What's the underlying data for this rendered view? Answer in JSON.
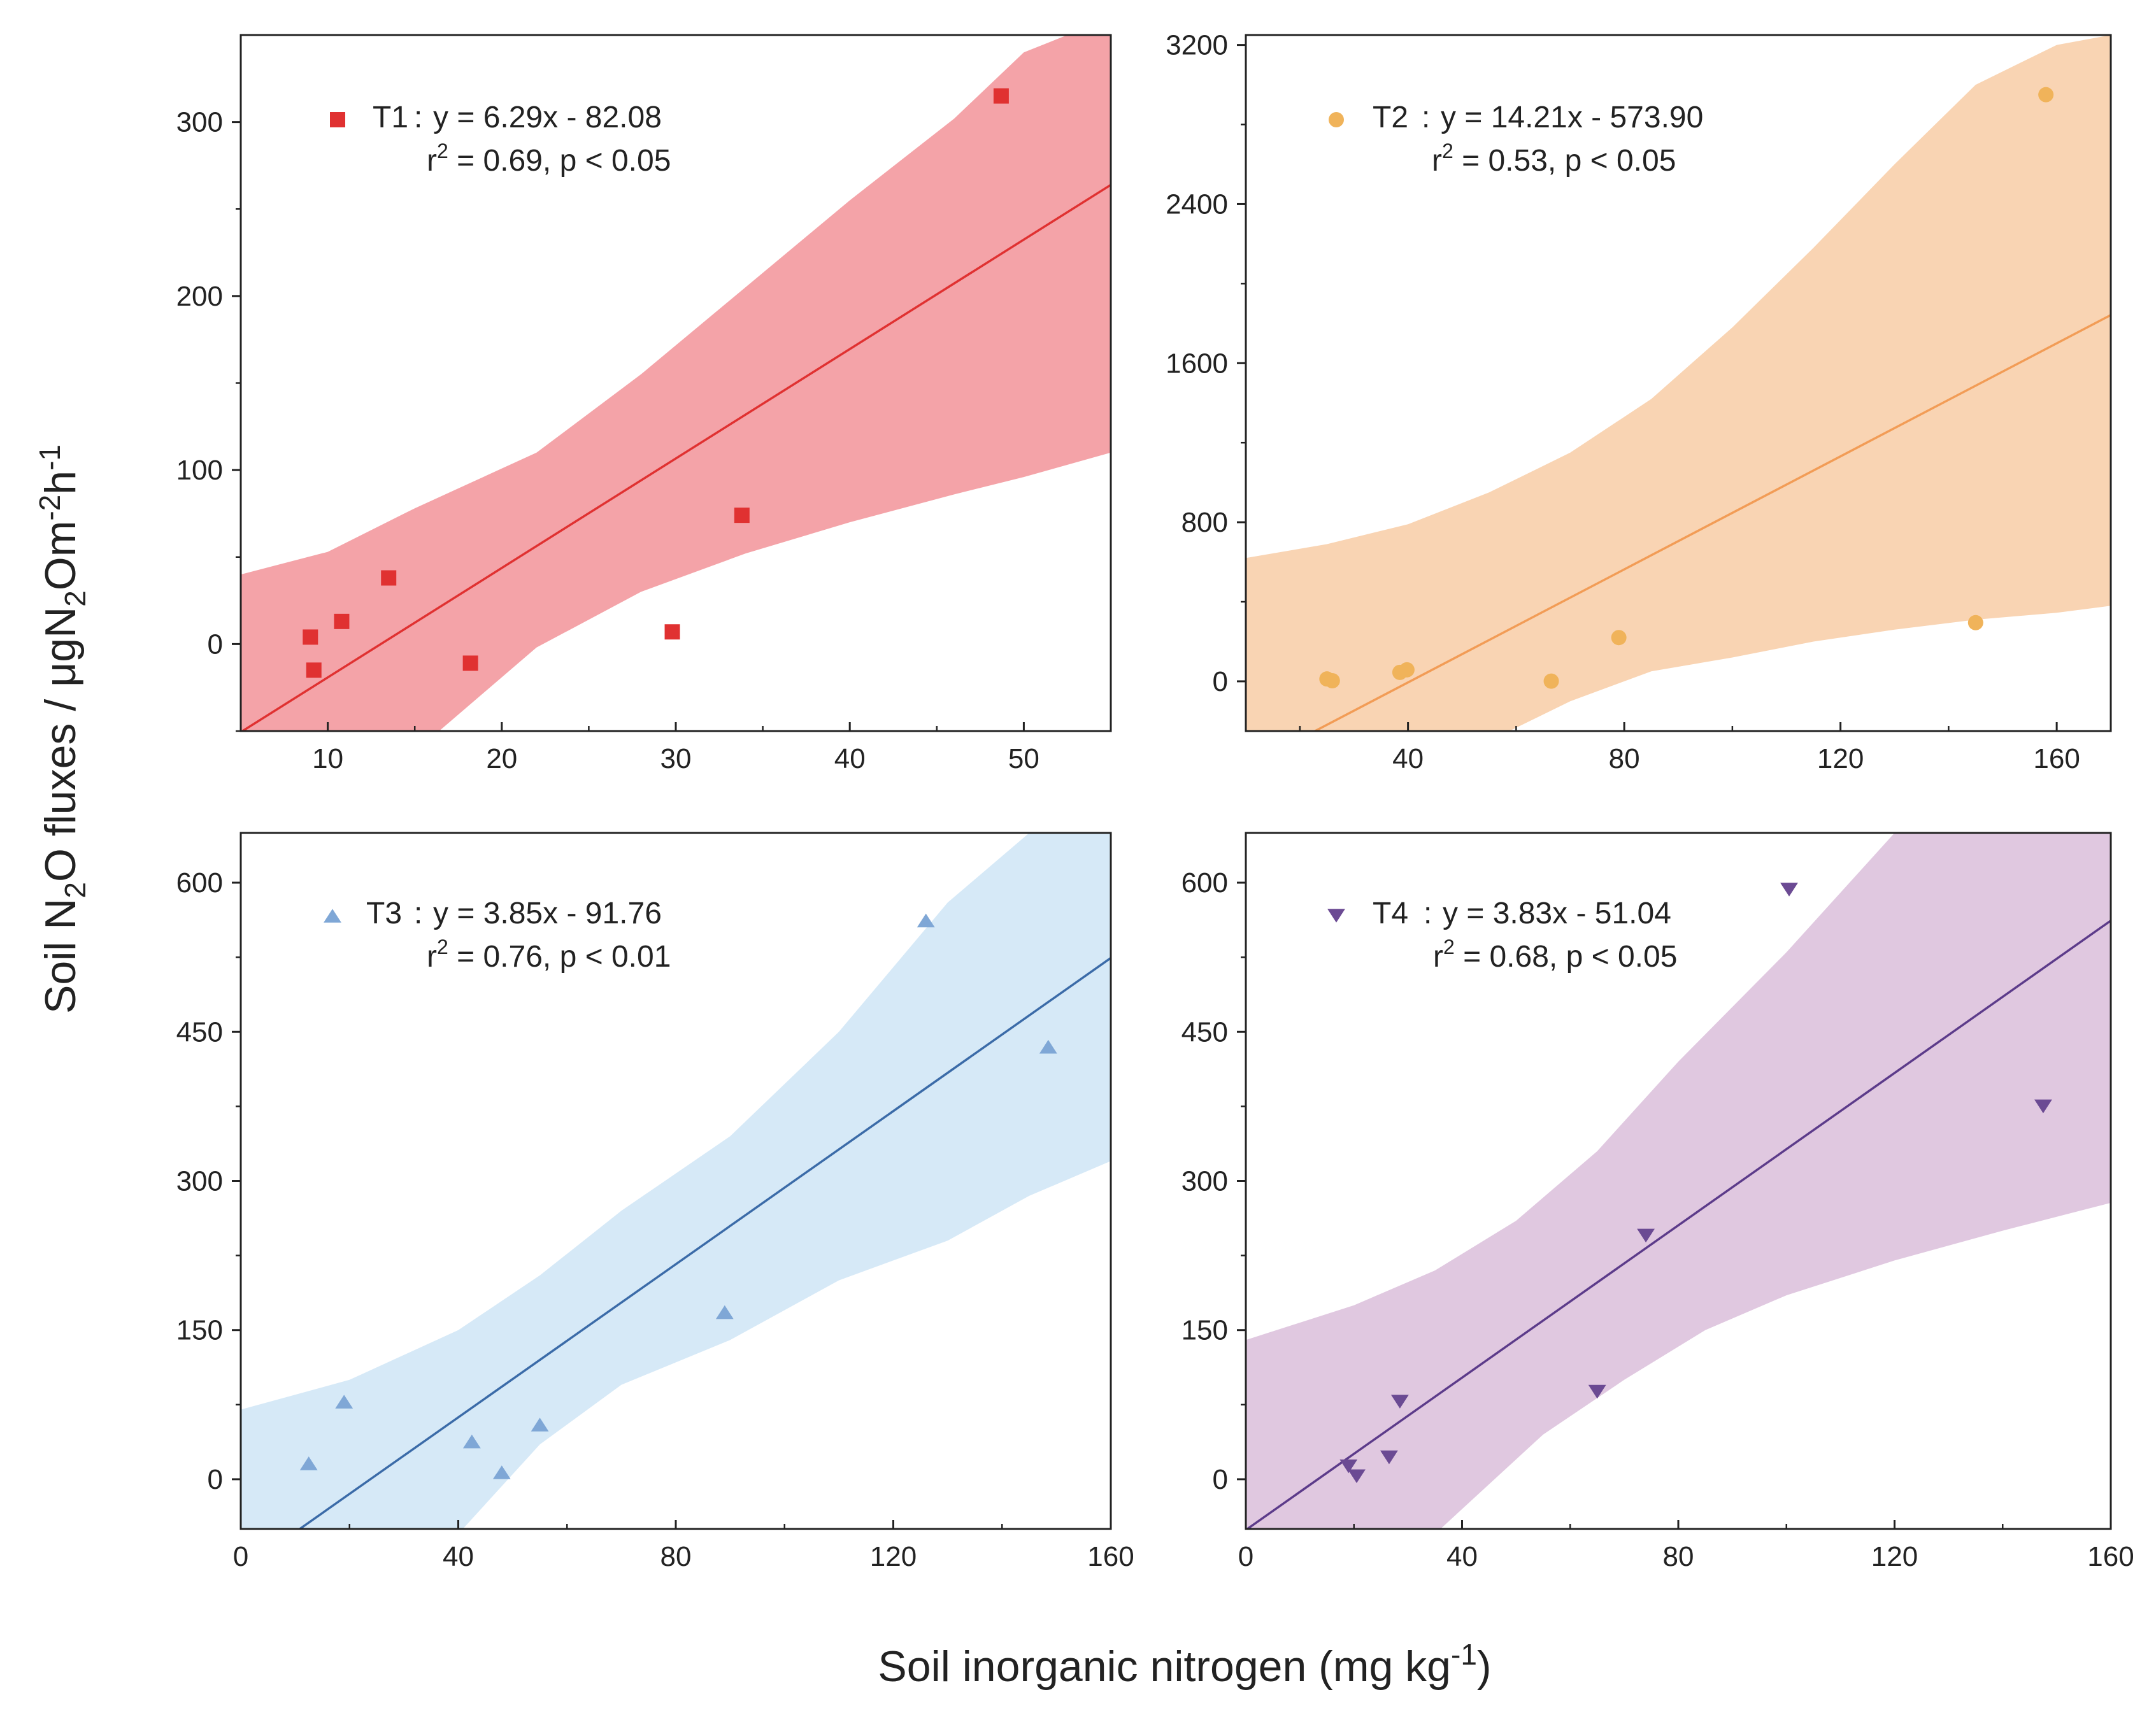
{
  "figure": {
    "ylabel": "Soil N2O fluxes / μgN2Om-2h-1",
    "ylabel_parts": {
      "t1": "Soil N",
      "s1": "2",
      "t2": "O fluxes / μgN",
      "s2": "2",
      "t3": "Om",
      "s3": "-2",
      "t4": "h",
      "s4": "-1"
    },
    "xlabel": "Soil inorganic nitrogen (mg kg-1)",
    "xlabel_parts": {
      "t1": "Soil inorganic nitrogen (mg kg",
      "s1": "-1",
      "t2": ")"
    }
  },
  "chart_data": [
    {
      "type": "scatter",
      "series": [
        {
          "name": "T1",
          "marker": "square",
          "color": "#e03131",
          "points": [
            [
              9,
              4
            ],
            [
              9.2,
              -15
            ],
            [
              10.8,
              13
            ],
            [
              13.5,
              38
            ],
            [
              18.2,
              -11
            ],
            [
              29.8,
              7
            ],
            [
              33.8,
              74
            ],
            [
              48.7,
              315
            ]
          ]
        }
      ],
      "fit": {
        "slope": 6.29,
        "intercept": -82.08,
        "color": "#e03131"
      },
      "band": {
        "color": "#f4a3a8",
        "upper": [
          [
            5,
            40
          ],
          [
            10,
            53
          ],
          [
            15,
            78
          ],
          [
            22,
            110
          ],
          [
            28,
            155
          ],
          [
            34,
            205
          ],
          [
            40,
            255
          ],
          [
            46,
            302
          ],
          [
            50,
            340
          ],
          [
            55,
            360
          ]
        ],
        "lower": [
          [
            5,
            -150
          ],
          [
            10,
            -110
          ],
          [
            15,
            -62
          ],
          [
            22,
            -2
          ],
          [
            28,
            30
          ],
          [
            34,
            52
          ],
          [
            40,
            70
          ],
          [
            46,
            86
          ],
          [
            50,
            96
          ],
          [
            55,
            110
          ]
        ]
      },
      "label": "T1",
      "equation": "y = 6.29x - 82.08",
      "stats": {
        "r": "r",
        "sup": "2",
        "rest": " = 0.69, p < 0.05"
      },
      "xlim": [
        5,
        55
      ],
      "ylim": [
        -50,
        350
      ],
      "xticks": [
        10,
        20,
        30,
        40,
        50
      ],
      "yticks": [
        0,
        100,
        200,
        300
      ],
      "xminor": [
        5,
        15,
        25,
        35,
        45,
        55
      ],
      "yminor": [
        -50,
        50,
        150,
        250
      ],
      "show_x_tick_labels": true
    },
    {
      "type": "scatter",
      "series": [
        {
          "name": "T2",
          "marker": "circle",
          "color": "#f0b35a",
          "points": [
            [
              25,
              12
            ],
            [
              26,
              3
            ],
            [
              38.5,
              45
            ],
            [
              39.8,
              58
            ],
            [
              66.5,
              1
            ],
            [
              79,
              220
            ],
            [
              145,
              295
            ],
            [
              158,
              2950
            ]
          ]
        }
      ],
      "fit": {
        "slope": 14.21,
        "intercept": -573.9,
        "color": "#f29c56"
      },
      "band": {
        "color": "#f9d4b3",
        "upper": [
          [
            10,
            620
          ],
          [
            25,
            690
          ],
          [
            40,
            790
          ],
          [
            55,
            950
          ],
          [
            70,
            1150
          ],
          [
            85,
            1420
          ],
          [
            100,
            1780
          ],
          [
            115,
            2180
          ],
          [
            130,
            2600
          ],
          [
            145,
            3000
          ],
          [
            160,
            3200
          ],
          [
            170,
            3250
          ]
        ],
        "lower": [
          [
            10,
            -1400
          ],
          [
            25,
            -900
          ],
          [
            40,
            -550
          ],
          [
            55,
            -300
          ],
          [
            70,
            -100
          ],
          [
            85,
            50
          ],
          [
            100,
            120
          ],
          [
            115,
            200
          ],
          [
            130,
            260
          ],
          [
            145,
            310
          ],
          [
            160,
            345
          ],
          [
            170,
            380
          ]
        ]
      },
      "label": "T2",
      "equation": "y = 14.21x - 573.90",
      "stats": {
        "r": "r",
        "sup": "2",
        "rest": " = 0.53, p < 0.05"
      },
      "xlim": [
        10,
        170
      ],
      "ylim": [
        -250,
        3250
      ],
      "xticks": [
        40,
        80,
        120,
        160
      ],
      "yticks": [
        0,
        800,
        1600,
        2400,
        3200
      ],
      "xminor": [
        20,
        60,
        100,
        140
      ],
      "yminor": [
        400,
        1200,
        2000,
        2800
      ],
      "show_x_tick_labels": true
    },
    {
      "type": "scatter",
      "series": [
        {
          "name": "T3",
          "marker": "triangle-up",
          "color": "#7fa7d6",
          "points": [
            [
              12.5,
              16
            ],
            [
              19,
              78
            ],
            [
              42.5,
              38
            ],
            [
              48,
              7
            ],
            [
              55,
              55
            ],
            [
              89,
              168
            ],
            [
              126,
              562
            ],
            [
              148.5,
              435
            ]
          ]
        }
      ],
      "fit": {
        "slope": 3.85,
        "intercept": -91.76,
        "color": "#3b6ba8"
      },
      "band": {
        "color": "#d6e9f7",
        "upper": [
          [
            0,
            70
          ],
          [
            20,
            100
          ],
          [
            40,
            150
          ],
          [
            55,
            205
          ],
          [
            70,
            270
          ],
          [
            90,
            345
          ],
          [
            110,
            450
          ],
          [
            130,
            580
          ],
          [
            145,
            650
          ],
          [
            160,
            700
          ]
        ],
        "lower": [
          [
            0,
            -200
          ],
          [
            20,
            -160
          ],
          [
            40,
            -55
          ],
          [
            55,
            35
          ],
          [
            70,
            95
          ],
          [
            90,
            140
          ],
          [
            110,
            200
          ],
          [
            130,
            240
          ],
          [
            145,
            285
          ],
          [
            160,
            320
          ]
        ]
      },
      "label": "T3",
      "equation": "y = 3.85x - 91.76",
      "stats": {
        "r": "r",
        "sup": "2",
        "rest": " = 0.76, p < 0.01"
      },
      "xlim": [
        0,
        160
      ],
      "ylim": [
        -50,
        650
      ],
      "xticks": [
        0,
        40,
        80,
        120,
        160
      ],
      "yticks": [
        0,
        150,
        300,
        450,
        600
      ],
      "xminor": [
        20,
        60,
        100,
        140
      ],
      "yminor": [
        75,
        225,
        375,
        525
      ],
      "show_x_tick_labels": true
    },
    {
      "type": "scatter",
      "series": [
        {
          "name": "T4",
          "marker": "triangle-down",
          "color": "#6b4a93",
          "points": [
            [
              19,
              13
            ],
            [
              20.5,
              3
            ],
            [
              26.5,
              22
            ],
            [
              28.5,
              78
            ],
            [
              65,
              88
            ],
            [
              74,
              245
            ],
            [
              100.5,
              593
            ],
            [
              147.5,
              375
            ]
          ]
        }
      ],
      "fit": {
        "slope": 3.83,
        "intercept": -51.04,
        "color": "#5c3b8a"
      },
      "band": {
        "color": "#e0c8e0",
        "upper": [
          [
            0,
            140
          ],
          [
            20,
            175
          ],
          [
            35,
            210
          ],
          [
            50,
            260
          ],
          [
            65,
            330
          ],
          [
            80,
            420
          ],
          [
            100,
            530
          ],
          [
            120,
            650
          ],
          [
            140,
            700
          ],
          [
            160,
            720
          ]
        ],
        "lower": [
          [
            0,
            -260
          ],
          [
            20,
            -150
          ],
          [
            35,
            -55
          ],
          [
            55,
            45
          ],
          [
            70,
            100
          ],
          [
            85,
            150
          ],
          [
            100,
            185
          ],
          [
            120,
            220
          ],
          [
            140,
            250
          ],
          [
            160,
            278
          ]
        ]
      },
      "label": "T4",
      "equation": "y = 3.83x - 51.04",
      "stats": {
        "r": "r",
        "sup": "2",
        "rest": " = 0.68, p < 0.05"
      },
      "xlim": [
        0,
        160
      ],
      "ylim": [
        -50,
        650
      ],
      "xticks": [
        0,
        40,
        80,
        120,
        160
      ],
      "yticks": [
        0,
        150,
        300,
        450,
        600
      ],
      "xminor": [
        20,
        60,
        100,
        140
      ],
      "yminor": [
        75,
        225,
        375,
        525
      ],
      "show_x_tick_labels": true
    }
  ]
}
